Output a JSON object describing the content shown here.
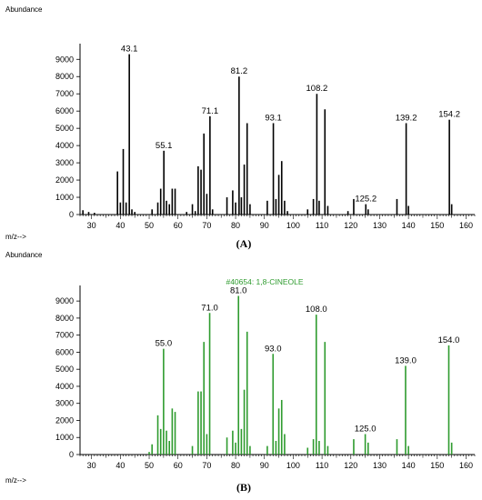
{
  "chart_data": [
    {
      "id": "A",
      "type": "bar",
      "panel_label": "(A)",
      "ylabel": "Abundance",
      "xlabel": "m/z-->",
      "title": "",
      "color": "#000000",
      "xlim": [
        26,
        163
      ],
      "ylim": [
        0,
        9700
      ],
      "x_ticks": [
        30,
        40,
        50,
        60,
        70,
        80,
        90,
        100,
        110,
        120,
        130,
        140,
        150,
        160
      ],
      "y_ticks": [
        0,
        1000,
        2000,
        3000,
        4000,
        5000,
        6000,
        7000,
        8000,
        9000
      ],
      "peaks": [
        {
          "x": 27,
          "y": 250
        },
        {
          "x": 29,
          "y": 150
        },
        {
          "x": 31,
          "y": 100
        },
        {
          "x": 39,
          "y": 2500
        },
        {
          "x": 40,
          "y": 700
        },
        {
          "x": 41,
          "y": 3800
        },
        {
          "x": 42,
          "y": 700
        },
        {
          "x": 43.1,
          "y": 9300,
          "label": "43.1"
        },
        {
          "x": 44,
          "y": 300
        },
        {
          "x": 45,
          "y": 150
        },
        {
          "x": 51,
          "y": 300
        },
        {
          "x": 53,
          "y": 700
        },
        {
          "x": 54,
          "y": 1500
        },
        {
          "x": 55.1,
          "y": 3700,
          "label": "55.1"
        },
        {
          "x": 56,
          "y": 800
        },
        {
          "x": 57,
          "y": 600
        },
        {
          "x": 58,
          "y": 1500
        },
        {
          "x": 59,
          "y": 1500
        },
        {
          "x": 63,
          "y": 150
        },
        {
          "x": 65,
          "y": 600
        },
        {
          "x": 66,
          "y": 200
        },
        {
          "x": 67,
          "y": 2800
        },
        {
          "x": 68,
          "y": 2600
        },
        {
          "x": 69,
          "y": 4700
        },
        {
          "x": 70,
          "y": 1200
        },
        {
          "x": 71.1,
          "y": 5700,
          "label": "71.1"
        },
        {
          "x": 72,
          "y": 300
        },
        {
          "x": 77,
          "y": 1000
        },
        {
          "x": 79,
          "y": 1400
        },
        {
          "x": 80,
          "y": 700
        },
        {
          "x": 81.2,
          "y": 8000,
          "label": "81.2"
        },
        {
          "x": 82,
          "y": 1000
        },
        {
          "x": 83,
          "y": 2900
        },
        {
          "x": 84,
          "y": 5300
        },
        {
          "x": 85,
          "y": 600
        },
        {
          "x": 91,
          "y": 800
        },
        {
          "x": 93.1,
          "y": 5300,
          "label": "93.1"
        },
        {
          "x": 94,
          "y": 900
        },
        {
          "x": 95,
          "y": 2300
        },
        {
          "x": 96,
          "y": 3100
        },
        {
          "x": 97,
          "y": 800
        },
        {
          "x": 98,
          "y": 200
        },
        {
          "x": 105,
          "y": 300
        },
        {
          "x": 107,
          "y": 900
        },
        {
          "x": 108.2,
          "y": 7000,
          "label": "108.2"
        },
        {
          "x": 109,
          "y": 800
        },
        {
          "x": 111,
          "y": 6100
        },
        {
          "x": 112,
          "y": 500
        },
        {
          "x": 119,
          "y": 200
        },
        {
          "x": 121,
          "y": 900
        },
        {
          "x": 125.2,
          "y": 600,
          "label": "125.2"
        },
        {
          "x": 126,
          "y": 300
        },
        {
          "x": 136,
          "y": 900
        },
        {
          "x": 139.2,
          "y": 5300,
          "label": "139.2"
        },
        {
          "x": 140,
          "y": 500
        },
        {
          "x": 154.2,
          "y": 5500,
          "label": "154.2"
        },
        {
          "x": 155,
          "y": 600
        }
      ]
    },
    {
      "id": "B",
      "type": "bar",
      "panel_label": "(B)",
      "ylabel": "Abundance",
      "xlabel": "m/z-->",
      "title": "#40654: 1,8-CINEOLE",
      "color": "#2e9b2e",
      "xlim": [
        26,
        163
      ],
      "ylim": [
        0,
        9700
      ],
      "x_ticks": [
        30,
        40,
        50,
        60,
        70,
        80,
        90,
        100,
        110,
        120,
        130,
        140,
        150,
        160
      ],
      "y_ticks": [
        0,
        1000,
        2000,
        3000,
        4000,
        5000,
        6000,
        7000,
        8000,
        9000
      ],
      "peaks": [
        {
          "x": 50,
          "y": 150
        },
        {
          "x": 51,
          "y": 600
        },
        {
          "x": 53,
          "y": 2300
        },
        {
          "x": 54,
          "y": 1500
        },
        {
          "x": 55.0,
          "y": 6200,
          "label": "55.0"
        },
        {
          "x": 56,
          "y": 1400
        },
        {
          "x": 57,
          "y": 800
        },
        {
          "x": 58,
          "y": 2700
        },
        {
          "x": 59,
          "y": 2500
        },
        {
          "x": 65,
          "y": 500
        },
        {
          "x": 67,
          "y": 3700
        },
        {
          "x": 68,
          "y": 3700
        },
        {
          "x": 69,
          "y": 6600
        },
        {
          "x": 70,
          "y": 1200
        },
        {
          "x": 71.0,
          "y": 8300,
          "label": "71.0"
        },
        {
          "x": 77,
          "y": 1000
        },
        {
          "x": 79,
          "y": 1400
        },
        {
          "x": 80,
          "y": 700
        },
        {
          "x": 81.0,
          "y": 9300,
          "label": "81.0"
        },
        {
          "x": 82,
          "y": 1500
        },
        {
          "x": 83,
          "y": 3800
        },
        {
          "x": 84,
          "y": 7200
        },
        {
          "x": 85,
          "y": 500
        },
        {
          "x": 91,
          "y": 500
        },
        {
          "x": 93.0,
          "y": 5900,
          "label": "93.0"
        },
        {
          "x": 94,
          "y": 800
        },
        {
          "x": 95,
          "y": 2700
        },
        {
          "x": 96,
          "y": 3200
        },
        {
          "x": 97,
          "y": 1200
        },
        {
          "x": 105,
          "y": 400
        },
        {
          "x": 107,
          "y": 900
        },
        {
          "x": 108.0,
          "y": 8200,
          "label": "108.0"
        },
        {
          "x": 109,
          "y": 800
        },
        {
          "x": 111,
          "y": 6600
        },
        {
          "x": 112,
          "y": 500
        },
        {
          "x": 121,
          "y": 900
        },
        {
          "x": 125.0,
          "y": 1200,
          "label": "125.0"
        },
        {
          "x": 126,
          "y": 700
        },
        {
          "x": 136,
          "y": 900
        },
        {
          "x": 139.0,
          "y": 5200,
          "label": "139.0"
        },
        {
          "x": 140,
          "y": 500
        },
        {
          "x": 154.0,
          "y": 6400,
          "label": "154.0"
        },
        {
          "x": 155,
          "y": 700
        }
      ]
    }
  ]
}
